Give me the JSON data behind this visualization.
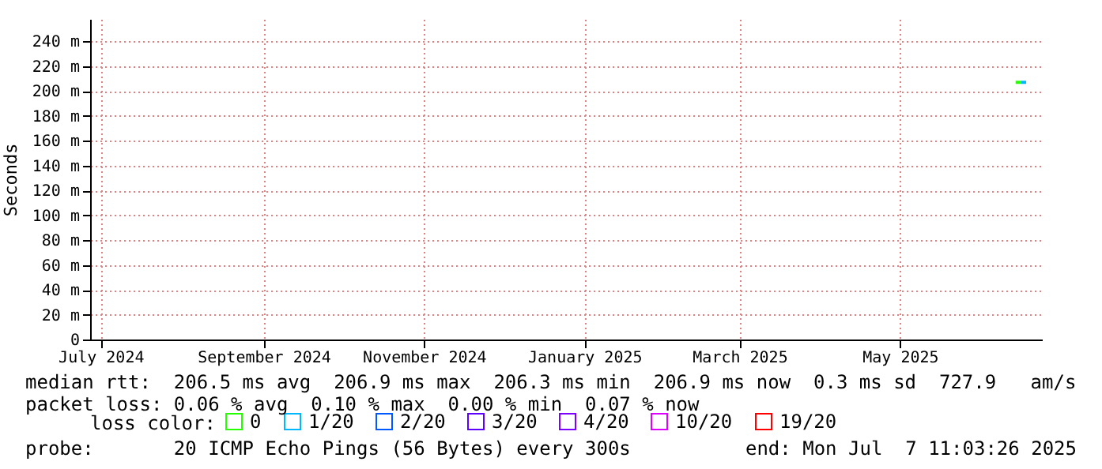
{
  "chart_data": {
    "type": "line",
    "ylabel": "Seconds",
    "legend_title": "loss color:",
    "legend": "bottom",
    "grid": true,
    "x": [
      "2025-06-14",
      "2025-06-16",
      "2025-06-18"
    ],
    "xlim": [
      "2024-06-27",
      "2025-06-24"
    ],
    "xticks": [
      {
        "value": "2024-07-01",
        "label": "July 2024"
      },
      {
        "value": "2024-09-01",
        "label": "September 2024"
      },
      {
        "value": "2024-11-01",
        "label": "November 2024"
      },
      {
        "value": "2025-01-01",
        "label": "January 2025"
      },
      {
        "value": "2025-03-01",
        "label": "March 2025"
      },
      {
        "value": "2025-05-01",
        "label": "May 2025"
      }
    ],
    "ylim": [
      0,
      258
    ],
    "yticks": [
      0,
      {
        "value": 20,
        "label": "20 m"
      },
      {
        "value": 40,
        "label": "40 m"
      },
      {
        "value": 60,
        "label": "60 m"
      },
      {
        "value": 80,
        "label": "80 m"
      },
      {
        "value": 100,
        "label": "100 m"
      },
      {
        "value": 120,
        "label": "120 m"
      },
      {
        "value": 140,
        "label": "140 m"
      },
      {
        "value": 160,
        "label": "160 m"
      },
      {
        "value": 180,
        "label": "180 m"
      },
      {
        "value": 200,
        "label": "200 m"
      },
      {
        "value": 220,
        "label": "220 m"
      },
      {
        "value": 240,
        "label": "240 m"
      }
    ],
    "series": [
      {
        "name": "0",
        "color": "#26ff00",
        "values": [
          207,
          207,
          null
        ]
      },
      {
        "name": "1/20",
        "color": "#00b8ff",
        "values": [
          null,
          207,
          207
        ]
      },
      {
        "name": "2/20",
        "color": "#0059ff",
        "values": [
          null,
          null,
          null
        ]
      },
      {
        "name": "3/20",
        "color": "#5e00ff",
        "values": [
          null,
          null,
          null
        ]
      },
      {
        "name": "4/20",
        "color": "#7e00ff",
        "values": [
          null,
          null,
          null
        ]
      },
      {
        "name": "10/20",
        "color": "#dd00ff",
        "values": [
          null,
          null,
          null
        ]
      },
      {
        "name": "19/20",
        "color": "#ff0000",
        "values": [
          null,
          null,
          null
        ]
      }
    ],
    "annotations": [
      "median rtt:  206.5 ms avg  206.9 ms max  206.3 ms min  206.9 ms now  0.3 ms sd  727.9   am/s",
      "packet loss: 0.06 % avg  0.10 % max  0.00 % min  0.07 % now",
      "probe:       20 ICMP Echo Pings (56 Bytes) every 300s",
      "end: Mon Jul  7 11:03:26 2025"
    ]
  }
}
